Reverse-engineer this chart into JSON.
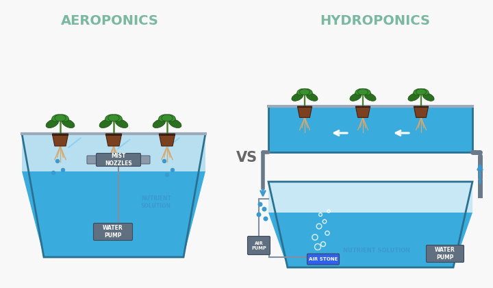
{
  "bg_color": "#f8f8f8",
  "title_aerop": "AEROPONICS",
  "title_hydrop": "HYDROPONICS",
  "vs_text": "VS",
  "title_color": "#7ab8a0",
  "vs_color": "#666666",
  "water_light": "#b8dff0",
  "water_dark": "#3aabdd",
  "water_med": "#5abfea",
  "tank_edge": "#2a7090",
  "tank_fill_light": "#c8e8f5",
  "pot_color": "#7a4020",
  "pot_edge": "#4a2010",
  "root_color": "#d4a870",
  "leaf_color": "#2a7020",
  "leaf_mid": "#3a9030",
  "stem_color": "#4a8030",
  "label_bg": "#607080",
  "label_text": "#ffffff",
  "airstone_bg": "#3060ee",
  "mist_col": "#90d0f0",
  "white": "#ffffff",
  "pipe_col": "#6a7a8a",
  "drop_col": "#3a9ad0",
  "arrow_down_col": "#3a9ad0",
  "lid_col": "#9aaabb"
}
